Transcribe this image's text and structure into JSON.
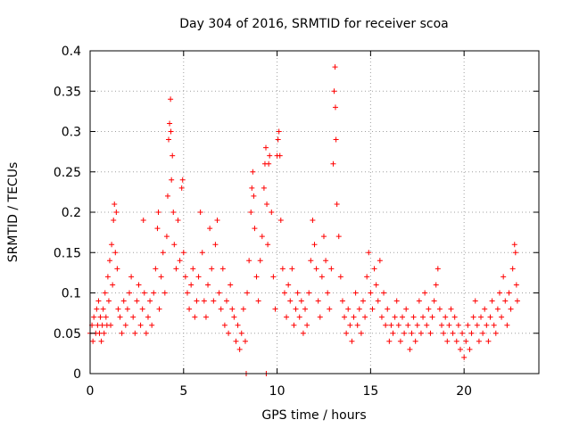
{
  "chart_data": {
    "type": "scatter",
    "title": "Day 304 of 2016, SRMTID for receiver scoa",
    "xlabel": "GPS time / hours",
    "ylabel": "SRMTID / TECUs",
    "xlim": [
      0,
      24
    ],
    "ylim": [
      0,
      0.4
    ],
    "x_ticks": [
      0,
      5,
      10,
      15,
      20
    ],
    "x_tick_labels": [
      "0",
      "5",
      "10",
      "15",
      "20"
    ],
    "y_ticks": [
      0,
      0.05,
      0.1,
      0.15,
      0.2,
      0.25,
      0.3,
      0.35,
      0.4
    ],
    "y_tick_labels": [
      "0",
      "0.05",
      "0.1",
      "0.15",
      "0.2",
      "0.25",
      "0.3",
      "0.35",
      "0.4"
    ],
    "grid": true,
    "marker": "+",
    "colors": {
      "series": "#ff0000",
      "grid": "#a0a0a0",
      "axis": "#000000"
    },
    "series": [
      {
        "name": "SRMTID",
        "points": [
          [
            0.0,
            0.05
          ],
          [
            0.1,
            0.06
          ],
          [
            0.15,
            0.04
          ],
          [
            0.2,
            0.07
          ],
          [
            0.3,
            0.05
          ],
          [
            0.35,
            0.08
          ],
          [
            0.4,
            0.06
          ],
          [
            0.45,
            0.09
          ],
          [
            0.5,
            0.05
          ],
          [
            0.55,
            0.07
          ],
          [
            0.6,
            0.04
          ],
          [
            0.65,
            0.06
          ],
          [
            0.7,
            0.08
          ],
          [
            0.75,
            0.05
          ],
          [
            0.8,
            0.1
          ],
          [
            0.85,
            0.07
          ],
          [
            0.9,
            0.06
          ],
          [
            0.95,
            0.12
          ],
          [
            1.0,
            0.09
          ],
          [
            1.05,
            0.14
          ],
          [
            1.1,
            0.06
          ],
          [
            1.15,
            0.16
          ],
          [
            1.2,
            0.11
          ],
          [
            1.25,
            0.19
          ],
          [
            1.3,
            0.21
          ],
          [
            1.35,
            0.15
          ],
          [
            1.4,
            0.2
          ],
          [
            1.45,
            0.13
          ],
          [
            1.5,
            0.08
          ],
          [
            1.6,
            0.07
          ],
          [
            1.7,
            0.05
          ],
          [
            1.8,
            0.09
          ],
          [
            1.9,
            0.06
          ],
          [
            2.0,
            0.08
          ],
          [
            2.1,
            0.1
          ],
          [
            2.2,
            0.12
          ],
          [
            2.3,
            0.07
          ],
          [
            2.4,
            0.05
          ],
          [
            2.5,
            0.09
          ],
          [
            2.6,
            0.11
          ],
          [
            2.7,
            0.06
          ],
          [
            2.8,
            0.08
          ],
          [
            2.85,
            0.19
          ],
          [
            2.9,
            0.1
          ],
          [
            3.0,
            0.05
          ],
          [
            3.1,
            0.07
          ],
          [
            3.2,
            0.09
          ],
          [
            3.3,
            0.06
          ],
          [
            3.4,
            0.1
          ],
          [
            3.5,
            0.13
          ],
          [
            3.6,
            0.18
          ],
          [
            3.65,
            0.2
          ],
          [
            3.7,
            0.08
          ],
          [
            3.8,
            0.12
          ],
          [
            3.9,
            0.15
          ],
          [
            4.0,
            0.1
          ],
          [
            4.1,
            0.17
          ],
          [
            4.15,
            0.22
          ],
          [
            4.2,
            0.29
          ],
          [
            4.25,
            0.31
          ],
          [
            4.3,
            0.34
          ],
          [
            4.32,
            0.3
          ],
          [
            4.35,
            0.24
          ],
          [
            4.4,
            0.27
          ],
          [
            4.45,
            0.2
          ],
          [
            4.5,
            0.16
          ],
          [
            4.6,
            0.13
          ],
          [
            4.7,
            0.19
          ],
          [
            4.8,
            0.14
          ],
          [
            4.9,
            0.23
          ],
          [
            4.95,
            0.24
          ],
          [
            5.0,
            0.15
          ],
          [
            5.1,
            0.12
          ],
          [
            5.2,
            0.1
          ],
          [
            5.3,
            0.08
          ],
          [
            5.4,
            0.11
          ],
          [
            5.5,
            0.13
          ],
          [
            5.6,
            0.07
          ],
          [
            5.7,
            0.09
          ],
          [
            5.8,
            0.12
          ],
          [
            5.9,
            0.2
          ],
          [
            6.0,
            0.15
          ],
          [
            6.1,
            0.09
          ],
          [
            6.2,
            0.07
          ],
          [
            6.3,
            0.11
          ],
          [
            6.4,
            0.18
          ],
          [
            6.5,
            0.13
          ],
          [
            6.6,
            0.09
          ],
          [
            6.7,
            0.16
          ],
          [
            6.8,
            0.19
          ],
          [
            6.9,
            0.1
          ],
          [
            7.0,
            0.08
          ],
          [
            7.1,
            0.13
          ],
          [
            7.2,
            0.06
          ],
          [
            7.3,
            0.09
          ],
          [
            7.4,
            0.05
          ],
          [
            7.5,
            0.11
          ],
          [
            7.6,
            0.08
          ],
          [
            7.7,
            0.07
          ],
          [
            7.8,
            0.04
          ],
          [
            7.9,
            0.06
          ],
          [
            8.0,
            0.03
          ],
          [
            8.1,
            0.05
          ],
          [
            8.2,
            0.08
          ],
          [
            8.3,
            0.04
          ],
          [
            8.35,
            0.0
          ],
          [
            8.4,
            0.1
          ],
          [
            8.5,
            0.14
          ],
          [
            8.6,
            0.2
          ],
          [
            8.65,
            0.23
          ],
          [
            8.7,
            0.25
          ],
          [
            8.75,
            0.22
          ],
          [
            8.8,
            0.18
          ],
          [
            8.9,
            0.12
          ],
          [
            9.0,
            0.09
          ],
          [
            9.1,
            0.14
          ],
          [
            9.2,
            0.17
          ],
          [
            9.3,
            0.23
          ],
          [
            9.35,
            0.26
          ],
          [
            9.4,
            0.28
          ],
          [
            9.42,
            0.0
          ],
          [
            9.45,
            0.21
          ],
          [
            9.5,
            0.16
          ],
          [
            9.55,
            0.26
          ],
          [
            9.6,
            0.27
          ],
          [
            9.7,
            0.2
          ],
          [
            9.8,
            0.12
          ],
          [
            9.9,
            0.08
          ],
          [
            10.0,
            0.27
          ],
          [
            10.05,
            0.29
          ],
          [
            10.1,
            0.3
          ],
          [
            10.15,
            0.27
          ],
          [
            10.2,
            0.19
          ],
          [
            10.3,
            0.13
          ],
          [
            10.4,
            0.1
          ],
          [
            10.5,
            0.07
          ],
          [
            10.6,
            0.11
          ],
          [
            10.7,
            0.09
          ],
          [
            10.8,
            0.13
          ],
          [
            10.9,
            0.06
          ],
          [
            11.0,
            0.08
          ],
          [
            11.1,
            0.1
          ],
          [
            11.2,
            0.07
          ],
          [
            11.3,
            0.09
          ],
          [
            11.4,
            0.05
          ],
          [
            11.5,
            0.08
          ],
          [
            11.6,
            0.06
          ],
          [
            11.7,
            0.1
          ],
          [
            11.8,
            0.14
          ],
          [
            11.9,
            0.19
          ],
          [
            12.0,
            0.16
          ],
          [
            12.1,
            0.13
          ],
          [
            12.2,
            0.09
          ],
          [
            12.3,
            0.07
          ],
          [
            12.4,
            0.12
          ],
          [
            12.5,
            0.17
          ],
          [
            12.6,
            0.14
          ],
          [
            12.7,
            0.1
          ],
          [
            12.8,
            0.08
          ],
          [
            12.9,
            0.13
          ],
          [
            13.0,
            0.26
          ],
          [
            13.05,
            0.35
          ],
          [
            13.1,
            0.38
          ],
          [
            13.12,
            0.33
          ],
          [
            13.15,
            0.29
          ],
          [
            13.2,
            0.21
          ],
          [
            13.3,
            0.17
          ],
          [
            13.4,
            0.12
          ],
          [
            13.5,
            0.09
          ],
          [
            13.6,
            0.07
          ],
          [
            13.7,
            0.05
          ],
          [
            13.8,
            0.08
          ],
          [
            13.9,
            0.06
          ],
          [
            14.0,
            0.04
          ],
          [
            14.1,
            0.07
          ],
          [
            14.2,
            0.1
          ],
          [
            14.3,
            0.06
          ],
          [
            14.4,
            0.08
          ],
          [
            14.5,
            0.05
          ],
          [
            14.6,
            0.09
          ],
          [
            14.7,
            0.07
          ],
          [
            14.8,
            0.12
          ],
          [
            14.9,
            0.15
          ],
          [
            15.0,
            0.1
          ],
          [
            15.1,
            0.08
          ],
          [
            15.2,
            0.13
          ],
          [
            15.3,
            0.11
          ],
          [
            15.4,
            0.09
          ],
          [
            15.5,
            0.14
          ],
          [
            15.6,
            0.07
          ],
          [
            15.7,
            0.1
          ],
          [
            15.8,
            0.06
          ],
          [
            15.9,
            0.08
          ],
          [
            16.0,
            0.04
          ],
          [
            16.1,
            0.06
          ],
          [
            16.2,
            0.05
          ],
          [
            16.3,
            0.07
          ],
          [
            16.4,
            0.09
          ],
          [
            16.5,
            0.06
          ],
          [
            16.6,
            0.04
          ],
          [
            16.7,
            0.07
          ],
          [
            16.8,
            0.05
          ],
          [
            16.9,
            0.08
          ],
          [
            17.0,
            0.06
          ],
          [
            17.1,
            0.03
          ],
          [
            17.2,
            0.05
          ],
          [
            17.3,
            0.07
          ],
          [
            17.4,
            0.04
          ],
          [
            17.5,
            0.06
          ],
          [
            17.6,
            0.09
          ],
          [
            17.7,
            0.05
          ],
          [
            17.8,
            0.07
          ],
          [
            17.9,
            0.1
          ],
          [
            18.0,
            0.06
          ],
          [
            18.1,
            0.08
          ],
          [
            18.2,
            0.05
          ],
          [
            18.3,
            0.07
          ],
          [
            18.4,
            0.09
          ],
          [
            18.5,
            0.11
          ],
          [
            18.6,
            0.13
          ],
          [
            18.7,
            0.08
          ],
          [
            18.8,
            0.06
          ],
          [
            18.9,
            0.05
          ],
          [
            19.0,
            0.07
          ],
          [
            19.1,
            0.04
          ],
          [
            19.2,
            0.06
          ],
          [
            19.3,
            0.08
          ],
          [
            19.4,
            0.05
          ],
          [
            19.5,
            0.07
          ],
          [
            19.6,
            0.04
          ],
          [
            19.7,
            0.06
          ],
          [
            19.8,
            0.03
          ],
          [
            19.9,
            0.05
          ],
          [
            20.0,
            0.02
          ],
          [
            20.1,
            0.04
          ],
          [
            20.2,
            0.06
          ],
          [
            20.3,
            0.03
          ],
          [
            20.4,
            0.05
          ],
          [
            20.5,
            0.07
          ],
          [
            20.6,
            0.09
          ],
          [
            20.7,
            0.06
          ],
          [
            20.8,
            0.04
          ],
          [
            20.9,
            0.07
          ],
          [
            21.0,
            0.05
          ],
          [
            21.1,
            0.08
          ],
          [
            21.2,
            0.06
          ],
          [
            21.3,
            0.04
          ],
          [
            21.4,
            0.07
          ],
          [
            21.5,
            0.09
          ],
          [
            21.6,
            0.06
          ],
          [
            21.7,
            0.05
          ],
          [
            21.8,
            0.08
          ],
          [
            21.9,
            0.1
          ],
          [
            22.0,
            0.07
          ],
          [
            22.1,
            0.12
          ],
          [
            22.2,
            0.09
          ],
          [
            22.3,
            0.06
          ],
          [
            22.4,
            0.1
          ],
          [
            22.5,
            0.08
          ],
          [
            22.6,
            0.13
          ],
          [
            22.7,
            0.16
          ],
          [
            22.75,
            0.15
          ],
          [
            22.8,
            0.11
          ],
          [
            22.85,
            0.09
          ]
        ]
      }
    ]
  }
}
